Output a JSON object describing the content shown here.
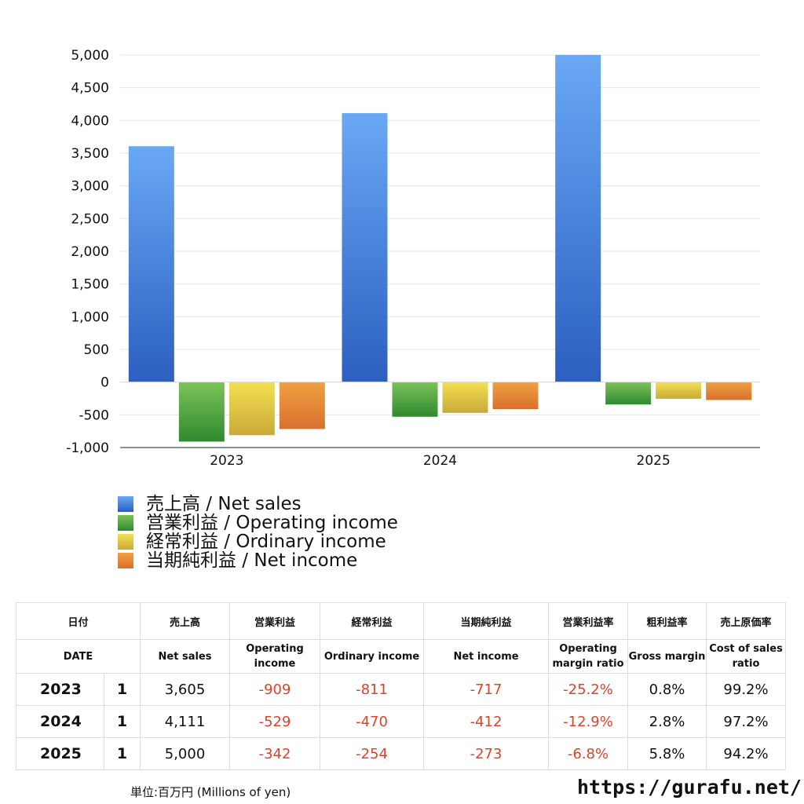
{
  "chart_data": {
    "type": "bar",
    "categories": [
      "2023",
      "2024",
      "2025"
    ],
    "ylim": [
      -1000,
      5000
    ],
    "yticks": [
      5000,
      4500,
      4000,
      3500,
      3000,
      2500,
      2000,
      1500,
      1000,
      500,
      0,
      -500,
      -1000
    ],
    "ytick_labels": [
      "5,000",
      "4,500",
      "4,000",
      "3,500",
      "3,000",
      "2,500",
      "2,000",
      "1,500",
      "1,000",
      "500",
      "0",
      "-500",
      "-1,000"
    ],
    "grid": true,
    "series": [
      {
        "name": "売上高 / Net sales",
        "values": [
          3605,
          4111,
          5000
        ],
        "color_top": "#6aa8f5",
        "color_bottom": "#2b5fc0"
      },
      {
        "name": "営業利益 / Operating income",
        "values": [
          -909,
          -529,
          -342
        ],
        "color_top": "#7cc25a",
        "color_bottom": "#2f8a2f"
      },
      {
        "name": "経常利益 / Ordinary income",
        "values": [
          -811,
          -470,
          -254
        ],
        "color_top": "#f4e050",
        "color_bottom": "#c9a93a"
      },
      {
        "name": "当期純利益 / Net income",
        "values": [
          -717,
          -412,
          -273
        ],
        "color_top": "#f0a040",
        "color_bottom": "#d9702e"
      }
    ]
  },
  "legend": {
    "items": [
      {
        "label": "売上高 / Net sales",
        "color": "#4a86e0"
      },
      {
        "label": "営業利益 / Operating income",
        "color": "#55a845"
      },
      {
        "label": "経常利益 / Ordinary income",
        "color": "#e8c840"
      },
      {
        "label": "当期純利益 / Net income",
        "color": "#e8843a"
      }
    ]
  },
  "table": {
    "headers_jp": [
      "日付",
      "売上高",
      "営業利益",
      "経常利益",
      "当期純利益",
      "営業利益率",
      "粗利益率",
      "売上原価率"
    ],
    "headers_en": [
      "DATE",
      "Net sales",
      "Operating income",
      "Ordinary income",
      "Net income",
      "Operating margin ratio",
      "Gross margin",
      "Cost of sales ratio"
    ],
    "rows": [
      {
        "year": "2023",
        "q": "1",
        "sales": "3,605",
        "op": "-909",
        "ord": "-811",
        "net": "-717",
        "opm": "-25.2%",
        "gm": "0.8%",
        "cos": "99.2%"
      },
      {
        "year": "2024",
        "q": "1",
        "sales": "4,111",
        "op": "-529",
        "ord": "-470",
        "net": "-412",
        "opm": "-12.9%",
        "gm": "2.8%",
        "cos": "97.2%"
      },
      {
        "year": "2025",
        "q": "1",
        "sales": "5,000",
        "op": "-342",
        "ord": "-254",
        "net": "-273",
        "opm": "-6.8%",
        "gm": "5.8%",
        "cos": "94.2%"
      }
    ]
  },
  "footer": {
    "unit": "単位:百万円 (Millions of yen)",
    "site": "https://gurafu.net/"
  },
  "colors": {
    "negative": "#d9442b"
  }
}
